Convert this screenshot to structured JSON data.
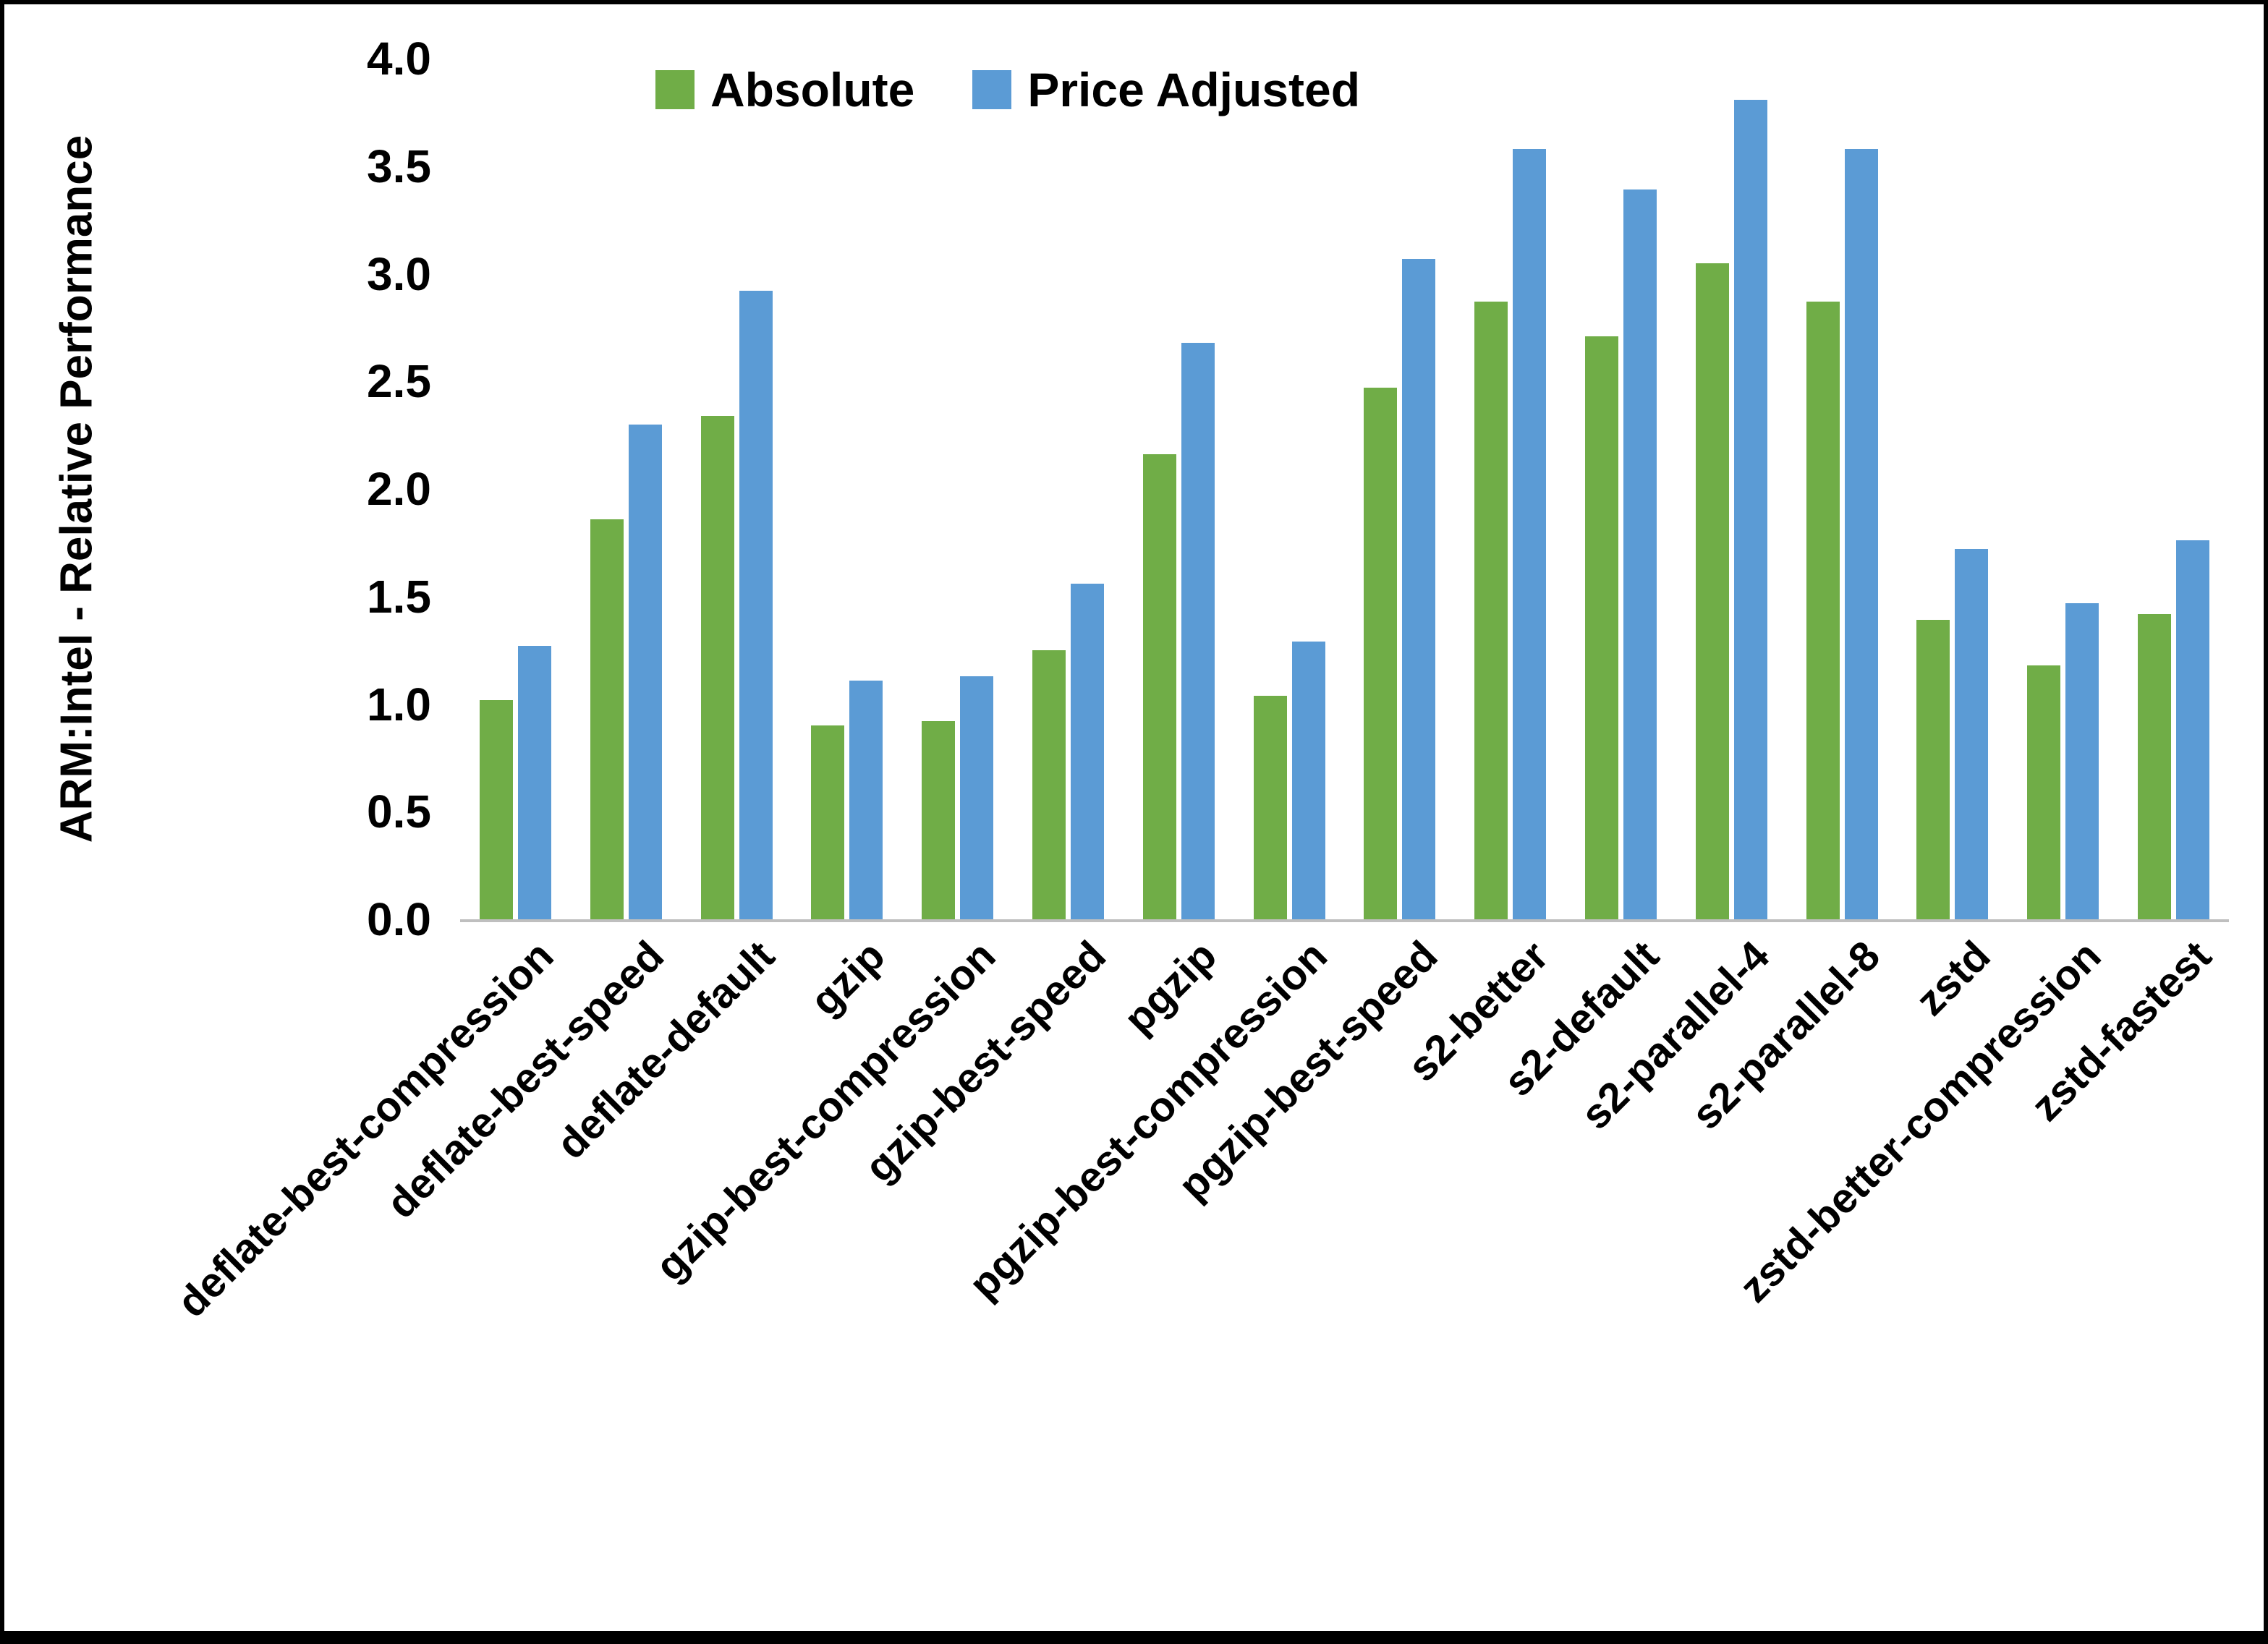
{
  "chart_data": {
    "type": "bar",
    "title": "",
    "xlabel": "",
    "ylabel": "ARM:Intel - Relative Performance",
    "ylim": [
      0,
      4.0
    ],
    "yticks": [
      "0.0",
      "0.5",
      "1.0",
      "1.5",
      "2.0",
      "2.5",
      "3.0",
      "3.5",
      "4.0"
    ],
    "grid": false,
    "legend_position": "top-center",
    "categories": [
      "deflate-best-compression",
      "deflate-best-speed",
      "deflate-default",
      "gzip",
      "gzip-best-compression",
      "gzip-best-speed",
      "pgzip",
      "pgzip-best-compression",
      "pgzip-best-speed",
      "s2-better",
      "s2-default",
      "s2-parallel-4",
      "s2-parallel-8",
      "zstd",
      "zstd-better-compression",
      "zstd-fastest"
    ],
    "series": [
      {
        "name": "Absolute",
        "color": "#70AD47",
        "values": [
          1.02,
          1.86,
          2.34,
          0.9,
          0.92,
          1.25,
          2.16,
          1.04,
          2.47,
          2.87,
          2.71,
          3.05,
          2.87,
          1.39,
          1.18,
          1.42
        ]
      },
      {
        "name": "Price Adjusted",
        "color": "#5B9BD5",
        "values": [
          1.27,
          2.3,
          2.92,
          1.11,
          1.13,
          1.56,
          2.68,
          1.29,
          3.07,
          3.58,
          3.39,
          3.81,
          3.58,
          1.72,
          1.47,
          1.76
        ]
      }
    ],
    "axis_line_color": "#bfbfbf"
  }
}
